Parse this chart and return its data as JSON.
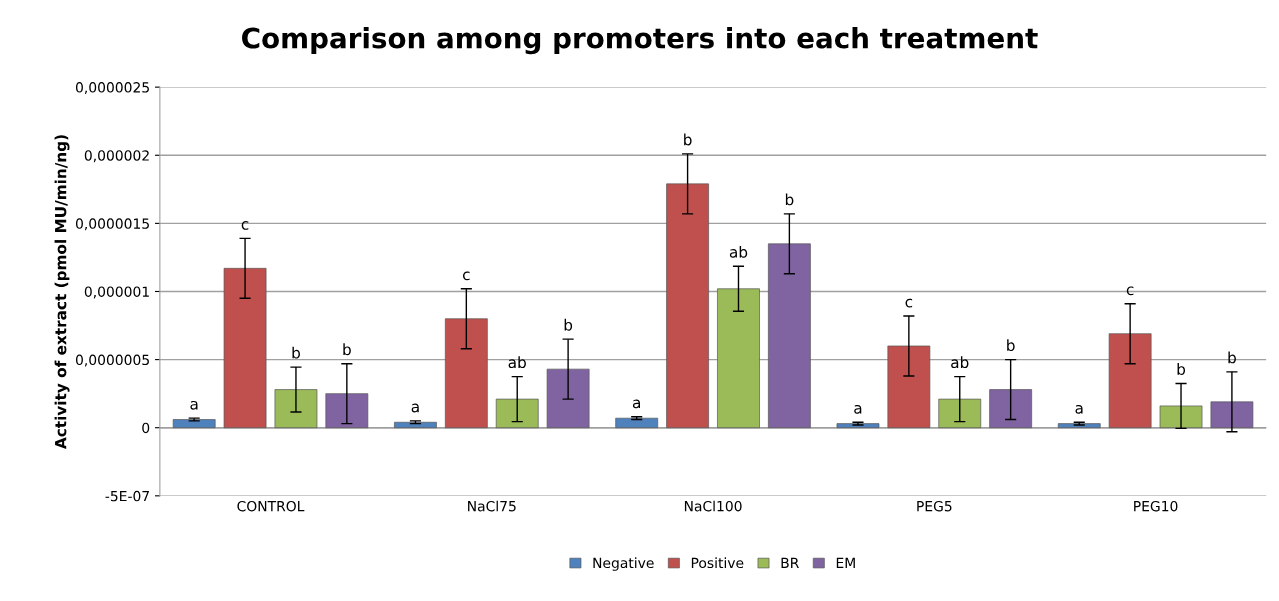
{
  "chart_data": {
    "type": "bar",
    "title": "Comparison among promoters into each treatment",
    "ylabel": "Activity of extract (pmol MU/min/ng)",
    "categories": [
      "CONTROL",
      "NaCl75",
      "NaCl100",
      "PEG5",
      "PEG10"
    ],
    "series": [
      {
        "name": "Negative",
        "color": "#4f81bd",
        "values": [
          6e-08,
          4e-08,
          7e-08,
          3e-08,
          3e-08
        ],
        "errors": [
          1e-08,
          1e-08,
          1e-08,
          1e-08,
          1e-08
        ],
        "value_labels": [
          "a",
          "a",
          "a",
          "a",
          "a"
        ]
      },
      {
        "name": "Positive",
        "color": "#c0504d",
        "values": [
          1.17e-06,
          8e-07,
          1.79e-06,
          6e-07,
          6.9e-07
        ],
        "errors": [
          2.2e-07,
          2.2e-07,
          2.2e-07,
          2.2e-07,
          2.2e-07
        ],
        "value_labels": [
          "c",
          "c",
          "b",
          "c",
          "c"
        ]
      },
      {
        "name": "BR",
        "color": "#9bbb59",
        "values": [
          2.8e-07,
          2.1e-07,
          1.02e-06,
          2.1e-07,
          1.6e-07
        ],
        "errors": [
          1.65e-07,
          1.65e-07,
          1.65e-07,
          1.65e-07,
          1.65e-07
        ],
        "value_labels": [
          "b",
          "ab",
          "ab",
          "ab",
          "b"
        ]
      },
      {
        "name": "EM",
        "color": "#8064a2",
        "values": [
          2.5e-07,
          4.3e-07,
          1.35e-06,
          2.8e-07,
          1.9e-07
        ],
        "errors": [
          2.2e-07,
          2.2e-07,
          2.2e-07,
          2.2e-07,
          2.2e-07
        ],
        "value_labels": [
          "b",
          "b",
          "b",
          "b",
          "b"
        ]
      }
    ],
    "ylim": [
      -5e-07,
      2.5e-06
    ],
    "yticks": [
      {
        "value": -5e-07,
        "label": "-5E-07"
      },
      {
        "value": 0,
        "label": "0"
      },
      {
        "value": 5e-07,
        "label": "0,0000005"
      },
      {
        "value": 1e-06,
        "label": "0,000001"
      },
      {
        "value": 1.5e-06,
        "label": "0,0000015"
      },
      {
        "value": 2e-06,
        "label": "0,000002"
      },
      {
        "value": 2.5e-06,
        "label": "0,0000025"
      }
    ],
    "grid": "y",
    "legend": "bottom"
  }
}
